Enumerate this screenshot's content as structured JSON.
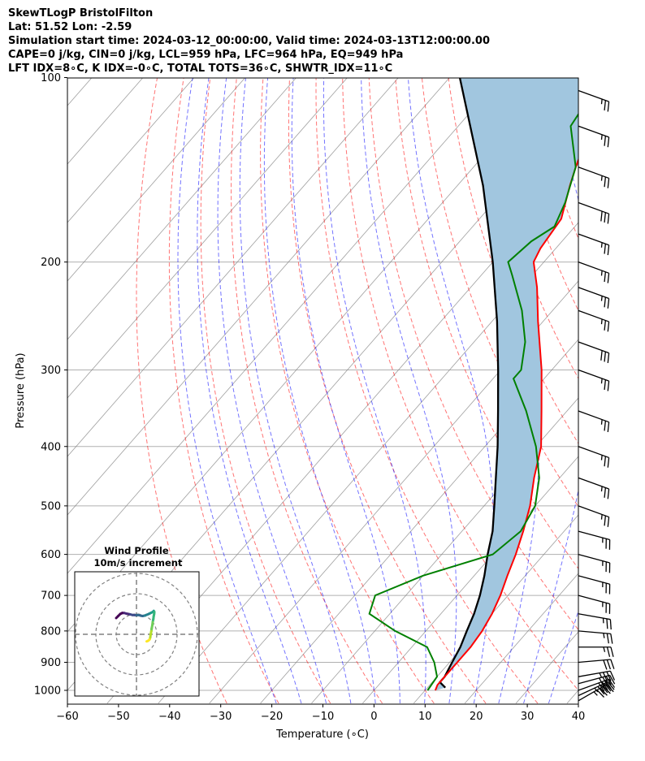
{
  "header": {
    "line1": "SkewTLogP BristolFilton",
    "line2": "Lat: 51.52   Lon: -2.59",
    "line3": "Simulation start time: 2024-03-12_00:00:00, Valid time: 2024-03-13T12:00:00.00",
    "line4": "CAPE=0 j/kg, CIN=0 j/kg, LCL=959 hPa, LFC=964 hPa, EQ=949 hPa",
    "line5": "LFT IDX=8∘C, K IDX=-0∘C, TOTAL TOTS=36∘C, SHWTR_IDX=11∘C"
  },
  "chart_data": [
    {
      "type": "line",
      "subtype": "skew-t log-p",
      "xlabel": "Temperature (∘C)",
      "ylabel": "Pressure (hPa)",
      "xlim": [
        -60,
        40
      ],
      "ylim": [
        1050,
        100
      ],
      "yscale": "log",
      "xticks": [
        -60,
        -50,
        -40,
        -30,
        -20,
        -10,
        0,
        10,
        20,
        30,
        40
      ],
      "yticks": [
        1000,
        900,
        800,
        700,
        600,
        500,
        400,
        300,
        200,
        100
      ],
      "grid": true,
      "colors": {
        "temperature": "#ff0000",
        "dewpoint": "#008000",
        "parcel": "#000000",
        "shade": "#a1c6df",
        "dry_adiabat": "#ff0000",
        "moist_adiabat": "#0000ff",
        "mixing_ratio": "#0000ff",
        "isotherm": "#808080"
      },
      "series": [
        {
          "role": "temperature",
          "points": [
            [
              1000,
              12
            ],
            [
              980,
              11.5
            ],
            [
              950,
              11.5
            ],
            [
              900,
              11.5
            ],
            [
              850,
              11.5
            ],
            [
              800,
              11
            ],
            [
              750,
              10
            ],
            [
              700,
              8.5
            ],
            [
              650,
              6.5
            ],
            [
              600,
              4.5
            ],
            [
              550,
              2
            ],
            [
              500,
              -1
            ],
            [
              450,
              -5
            ],
            [
              400,
              -9
            ],
            [
              350,
              -15
            ],
            [
              300,
              -22
            ],
            [
              250,
              -31
            ],
            [
              220,
              -37
            ],
            [
              200,
              -42
            ],
            [
              190,
              -43
            ],
            [
              170,
              -44
            ],
            [
              150,
              -48
            ],
            [
              140,
              -50
            ],
            [
              120,
              -54
            ],
            [
              110,
              -57
            ],
            [
              100,
              -59
            ]
          ]
        },
        {
          "role": "dewpoint",
          "points": [
            [
              1000,
              10.5
            ],
            [
              950,
              10
            ],
            [
              900,
              7
            ],
            [
              850,
              3
            ],
            [
              800,
              -6
            ],
            [
              750,
              -14
            ],
            [
              700,
              -16
            ],
            [
              650,
              -10
            ],
            [
              600,
              0
            ],
            [
              550,
              1.5
            ],
            [
              500,
              0
            ],
            [
              450,
              -4
            ],
            [
              400,
              -10
            ],
            [
              350,
              -18
            ],
            [
              310,
              -26
            ],
            [
              300,
              -26
            ],
            [
              270,
              -30
            ],
            [
              240,
              -36
            ],
            [
              210,
              -44
            ],
            [
              200,
              -47
            ],
            [
              185,
              -46
            ],
            [
              175,
              -44
            ],
            [
              160,
              -46
            ],
            [
              140,
              -50
            ],
            [
              120,
              -58
            ],
            [
              110,
              -59
            ],
            [
              100,
              -60
            ]
          ]
        },
        {
          "role": "parcel",
          "points": [
            [
              990,
              13.5
            ],
            [
              970,
              11.5
            ],
            [
              950,
              11.5
            ],
            [
              900,
              10.5
            ],
            [
              850,
              9.5
            ],
            [
              800,
              8
            ],
            [
              750,
              6.5
            ],
            [
              700,
              4.5
            ],
            [
              650,
              2
            ],
            [
              600,
              -1
            ],
            [
              550,
              -4
            ],
            [
              500,
              -8
            ],
            [
              450,
              -12.5
            ],
            [
              400,
              -17.5
            ],
            [
              350,
              -23.5
            ],
            [
              300,
              -30.5
            ],
            [
              250,
              -39
            ],
            [
              200,
              -50
            ],
            [
              150,
              -65
            ],
            [
              100,
              -88
            ]
          ]
        }
      ],
      "dry_adiabats_theta_C": [
        -30,
        -20,
        -10,
        0,
        10,
        20,
        30,
        40,
        50,
        60,
        70,
        80,
        90,
        100,
        110,
        120,
        130,
        140,
        150,
        160,
        170,
        180
      ],
      "moist_adiabats_start_C": [
        -20,
        -15,
        -10,
        -5,
        0,
        5,
        10,
        15,
        20,
        25,
        30,
        35
      ],
      "mixing_ratio_gkg": [
        0.4,
        1,
        2,
        4,
        7,
        10,
        16,
        24,
        32
      ],
      "wind_barbs": [
        {
          "p": 1040,
          "speed": 45,
          "dir": 240
        },
        {
          "p": 1020,
          "speed": 45,
          "dir": 245
        },
        {
          "p": 1000,
          "speed": 40,
          "dir": 250
        },
        {
          "p": 975,
          "speed": 40,
          "dir": 255
        },
        {
          "p": 950,
          "speed": 35,
          "dir": 260
        },
        {
          "p": 900,
          "speed": 30,
          "dir": 265
        },
        {
          "p": 850,
          "speed": 25,
          "dir": 270
        },
        {
          "p": 800,
          "speed": 25,
          "dir": 275
        },
        {
          "p": 750,
          "speed": 25,
          "dir": 280
        },
        {
          "p": 700,
          "speed": 25,
          "dir": 285
        },
        {
          "p": 650,
          "speed": 25,
          "dir": 285
        },
        {
          "p": 600,
          "speed": 25,
          "dir": 285
        },
        {
          "p": 550,
          "speed": 25,
          "dir": 285
        },
        {
          "p": 500,
          "speed": 25,
          "dir": 290
        },
        {
          "p": 450,
          "speed": 25,
          "dir": 290
        },
        {
          "p": 400,
          "speed": 25,
          "dir": 290
        },
        {
          "p": 350,
          "speed": 25,
          "dir": 290
        },
        {
          "p": 300,
          "speed": 25,
          "dir": 290
        },
        {
          "p": 270,
          "speed": 30,
          "dir": 290
        },
        {
          "p": 240,
          "speed": 25,
          "dir": 290
        },
        {
          "p": 220,
          "speed": 25,
          "dir": 290
        },
        {
          "p": 200,
          "speed": 25,
          "dir": 290
        },
        {
          "p": 180,
          "speed": 25,
          "dir": 290
        },
        {
          "p": 160,
          "speed": 30,
          "dir": 290
        },
        {
          "p": 140,
          "speed": 25,
          "dir": 290
        },
        {
          "p": 120,
          "speed": 25,
          "dir": 290
        },
        {
          "p": 105,
          "speed": 25,
          "dir": 290
        }
      ]
    },
    {
      "type": "scatter",
      "subtype": "hodograph",
      "title": "Wind Profile",
      "subtitle": "10m/s increment",
      "rings_ms": [
        10,
        20,
        30
      ],
      "colormap": "viridis",
      "points_uv": [
        [
          -10,
          8
        ],
        [
          -9,
          9
        ],
        [
          -8,
          10
        ],
        [
          -7,
          10.5
        ],
        [
          -6,
          10.5
        ],
        [
          -5,
          10.2
        ],
        [
          -4,
          10
        ],
        [
          -3,
          9.8
        ],
        [
          -2,
          9.5
        ],
        [
          -1,
          9.5
        ],
        [
          0,
          9.4
        ],
        [
          1,
          9.5
        ],
        [
          2,
          9.2
        ],
        [
          3,
          9
        ],
        [
          4,
          9.2
        ],
        [
          5,
          9.6
        ],
        [
          6,
          10
        ],
        [
          7,
          10.5
        ],
        [
          8,
          11
        ],
        [
          8.5,
          11.5
        ],
        [
          8.8,
          11
        ],
        [
          8.7,
          10
        ],
        [
          8.5,
          9
        ],
        [
          8.3,
          7.5
        ],
        [
          8,
          6
        ],
        [
          7.8,
          4.5
        ],
        [
          7.5,
          3
        ],
        [
          7.3,
          1.5
        ],
        [
          7,
          0
        ],
        [
          6.8,
          -1.5
        ],
        [
          6.5,
          -2.5
        ],
        [
          6,
          -3
        ],
        [
          5.5,
          -3.3
        ],
        [
          5,
          -3.5
        ]
      ]
    }
  ]
}
